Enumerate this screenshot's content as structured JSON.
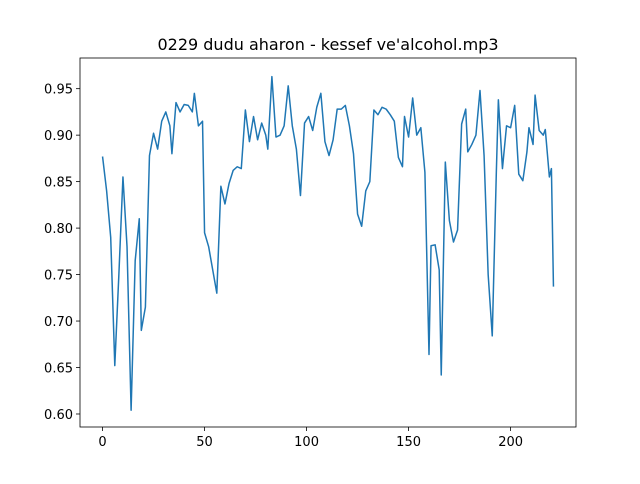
{
  "chart_data": {
    "type": "line",
    "title": "0229 dudu aharon - kessef ve'alcohol.mp3",
    "x": [
      0,
      2,
      4,
      6,
      8,
      10,
      12,
      14,
      16,
      18,
      19,
      21,
      23,
      25,
      27,
      29,
      31,
      33,
      34,
      36,
      38,
      40,
      42,
      44,
      45,
      47,
      49,
      50,
      52,
      56,
      58,
      60,
      62,
      64,
      66,
      68,
      70,
      72,
      74,
      76,
      78,
      80,
      81,
      83,
      85,
      87,
      89,
      91,
      93,
      95,
      97,
      99,
      101,
      103,
      105,
      107,
      109,
      111,
      113,
      115,
      117,
      119,
      121,
      123,
      125,
      127,
      129,
      131,
      133,
      135,
      137,
      139,
      141,
      143,
      145,
      147,
      148,
      150,
      152,
      154,
      156,
      158,
      160,
      161,
      163,
      165,
      166,
      168,
      170,
      172,
      174,
      176,
      178,
      179,
      181,
      183,
      185,
      187,
      189,
      191,
      193,
      194,
      196,
      198,
      200,
      202,
      204,
      206,
      208,
      209,
      211,
      212,
      214,
      216,
      217,
      219,
      220,
      221
    ],
    "series": [
      {
        "color": "#1f77b4",
        "values": [
          0.877,
          0.84,
          0.79,
          0.652,
          0.75,
          0.855,
          0.78,
          0.604,
          0.765,
          0.81,
          0.69,
          0.715,
          0.878,
          0.902,
          0.885,
          0.915,
          0.925,
          0.91,
          0.88,
          0.935,
          0.925,
          0.933,
          0.932,
          0.925,
          0.945,
          0.91,
          0.915,
          0.795,
          0.78,
          0.73,
          0.845,
          0.826,
          0.848,
          0.862,
          0.866,
          0.864,
          0.927,
          0.893,
          0.92,
          0.895,
          0.913,
          0.9,
          0.885,
          0.963,
          0.898,
          0.9,
          0.91,
          0.953,
          0.91,
          0.885,
          0.835,
          0.913,
          0.92,
          0.905,
          0.93,
          0.945,
          0.893,
          0.878,
          0.895,
          0.928,
          0.928,
          0.932,
          0.91,
          0.88,
          0.815,
          0.802,
          0.84,
          0.85,
          0.927,
          0.922,
          0.93,
          0.928,
          0.922,
          0.915,
          0.876,
          0.866,
          0.92,
          0.898,
          0.94,
          0.9,
          0.908,
          0.86,
          0.664,
          0.781,
          0.782,
          0.755,
          0.642,
          0.871,
          0.808,
          0.785,
          0.798,
          0.912,
          0.928,
          0.882,
          0.89,
          0.9,
          0.948,
          0.878,
          0.75,
          0.684,
          0.86,
          0.938,
          0.864,
          0.91,
          0.908,
          0.932,
          0.858,
          0.851,
          0.882,
          0.908,
          0.89,
          0.943,
          0.905,
          0.9,
          0.906,
          0.855,
          0.864,
          0.737
        ]
      }
    ],
    "xlim": [
      -11.05,
      232.05
    ],
    "ylim": [
      0.586,
      0.983
    ],
    "xticks": [
      0,
      50,
      100,
      150,
      200
    ],
    "yticks": [
      {
        "value": 0.6,
        "label": "0.60"
      },
      0.65,
      {
        "value": 0.7,
        "label": "0.70"
      },
      0.75,
      {
        "value": 0.8,
        "label": "0.80"
      },
      0.85,
      {
        "value": 0.9,
        "label": "0.90"
      },
      0.95
    ]
  }
}
